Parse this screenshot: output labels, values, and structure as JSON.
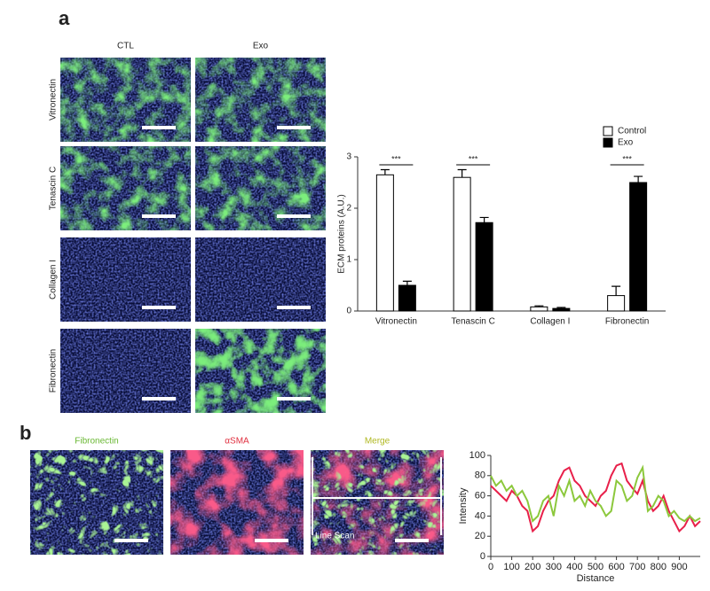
{
  "panel_a": {
    "label": "a",
    "columns": [
      "CTL",
      "Exo"
    ],
    "rows": [
      "Vitronectin",
      "Tenascin C",
      "Collagen I",
      "Fibronectin"
    ]
  },
  "panel_b": {
    "label": "b",
    "images": [
      "Fibronectin",
      "αSMA",
      "Merge"
    ],
    "line_scan": "Line Scan"
  },
  "chart_data": [
    {
      "type": "bar",
      "ylabel": "ECM proteins (A.U.)",
      "categories": [
        "Vitronectin",
        "Tenascin C",
        "Collagen I",
        "Fibronectin"
      ],
      "series": [
        {
          "name": "Control",
          "color": "#ffffff",
          "values": [
            2.65,
            2.6,
            0.08,
            0.3
          ],
          "errors": [
            0.1,
            0.15,
            0.02,
            0.18
          ]
        },
        {
          "name": "Exo",
          "color": "#000000",
          "values": [
            0.5,
            1.72,
            0.05,
            2.5
          ],
          "errors": [
            0.08,
            0.1,
            0.02,
            0.12
          ]
        }
      ],
      "annotations": [
        {
          "text": "***",
          "category": 0
        },
        {
          "text": "***",
          "category": 1
        },
        {
          "text": "***",
          "category": 3
        }
      ],
      "ylim": [
        0,
        3
      ],
      "yticks": [
        0,
        1,
        2,
        3
      ],
      "legend": "top-right"
    },
    {
      "type": "line",
      "xlabel": "Distance",
      "ylabel": "Intensity",
      "x": [
        0,
        25,
        50,
        75,
        100,
        125,
        150,
        175,
        200,
        225,
        250,
        275,
        300,
        325,
        350,
        375,
        400,
        425,
        450,
        475,
        500,
        525,
        550,
        575,
        600,
        625,
        650,
        675,
        700,
        725,
        750,
        775,
        800,
        825,
        850,
        875,
        900,
        925,
        950,
        975,
        1000
      ],
      "series": [
        {
          "color": "#e8204a",
          "values": [
            70,
            65,
            60,
            55,
            65,
            60,
            50,
            45,
            25,
            30,
            45,
            55,
            60,
            75,
            85,
            88,
            75,
            70,
            60,
            55,
            50,
            60,
            65,
            80,
            90,
            92,
            75,
            68,
            62,
            75,
            55,
            45,
            50,
            60,
            45,
            35,
            25,
            30,
            40,
            30,
            35
          ]
        },
        {
          "color": "#8cc83c",
          "values": [
            80,
            70,
            75,
            65,
            70,
            60,
            65,
            55,
            35,
            40,
            55,
            60,
            40,
            70,
            60,
            75,
            55,
            60,
            50,
            65,
            55,
            50,
            40,
            45,
            75,
            70,
            55,
            60,
            78,
            88,
            45,
            50,
            60,
            55,
            40,
            45,
            38,
            35,
            40,
            35,
            38
          ]
        }
      ],
      "xlim": [
        0,
        1000
      ],
      "xticks": [
        0,
        100,
        200,
        300,
        400,
        500,
        600,
        700,
        800,
        900
      ],
      "ylim": [
        0,
        100
      ],
      "yticks": [
        0,
        20,
        40,
        60,
        80,
        100
      ]
    }
  ]
}
